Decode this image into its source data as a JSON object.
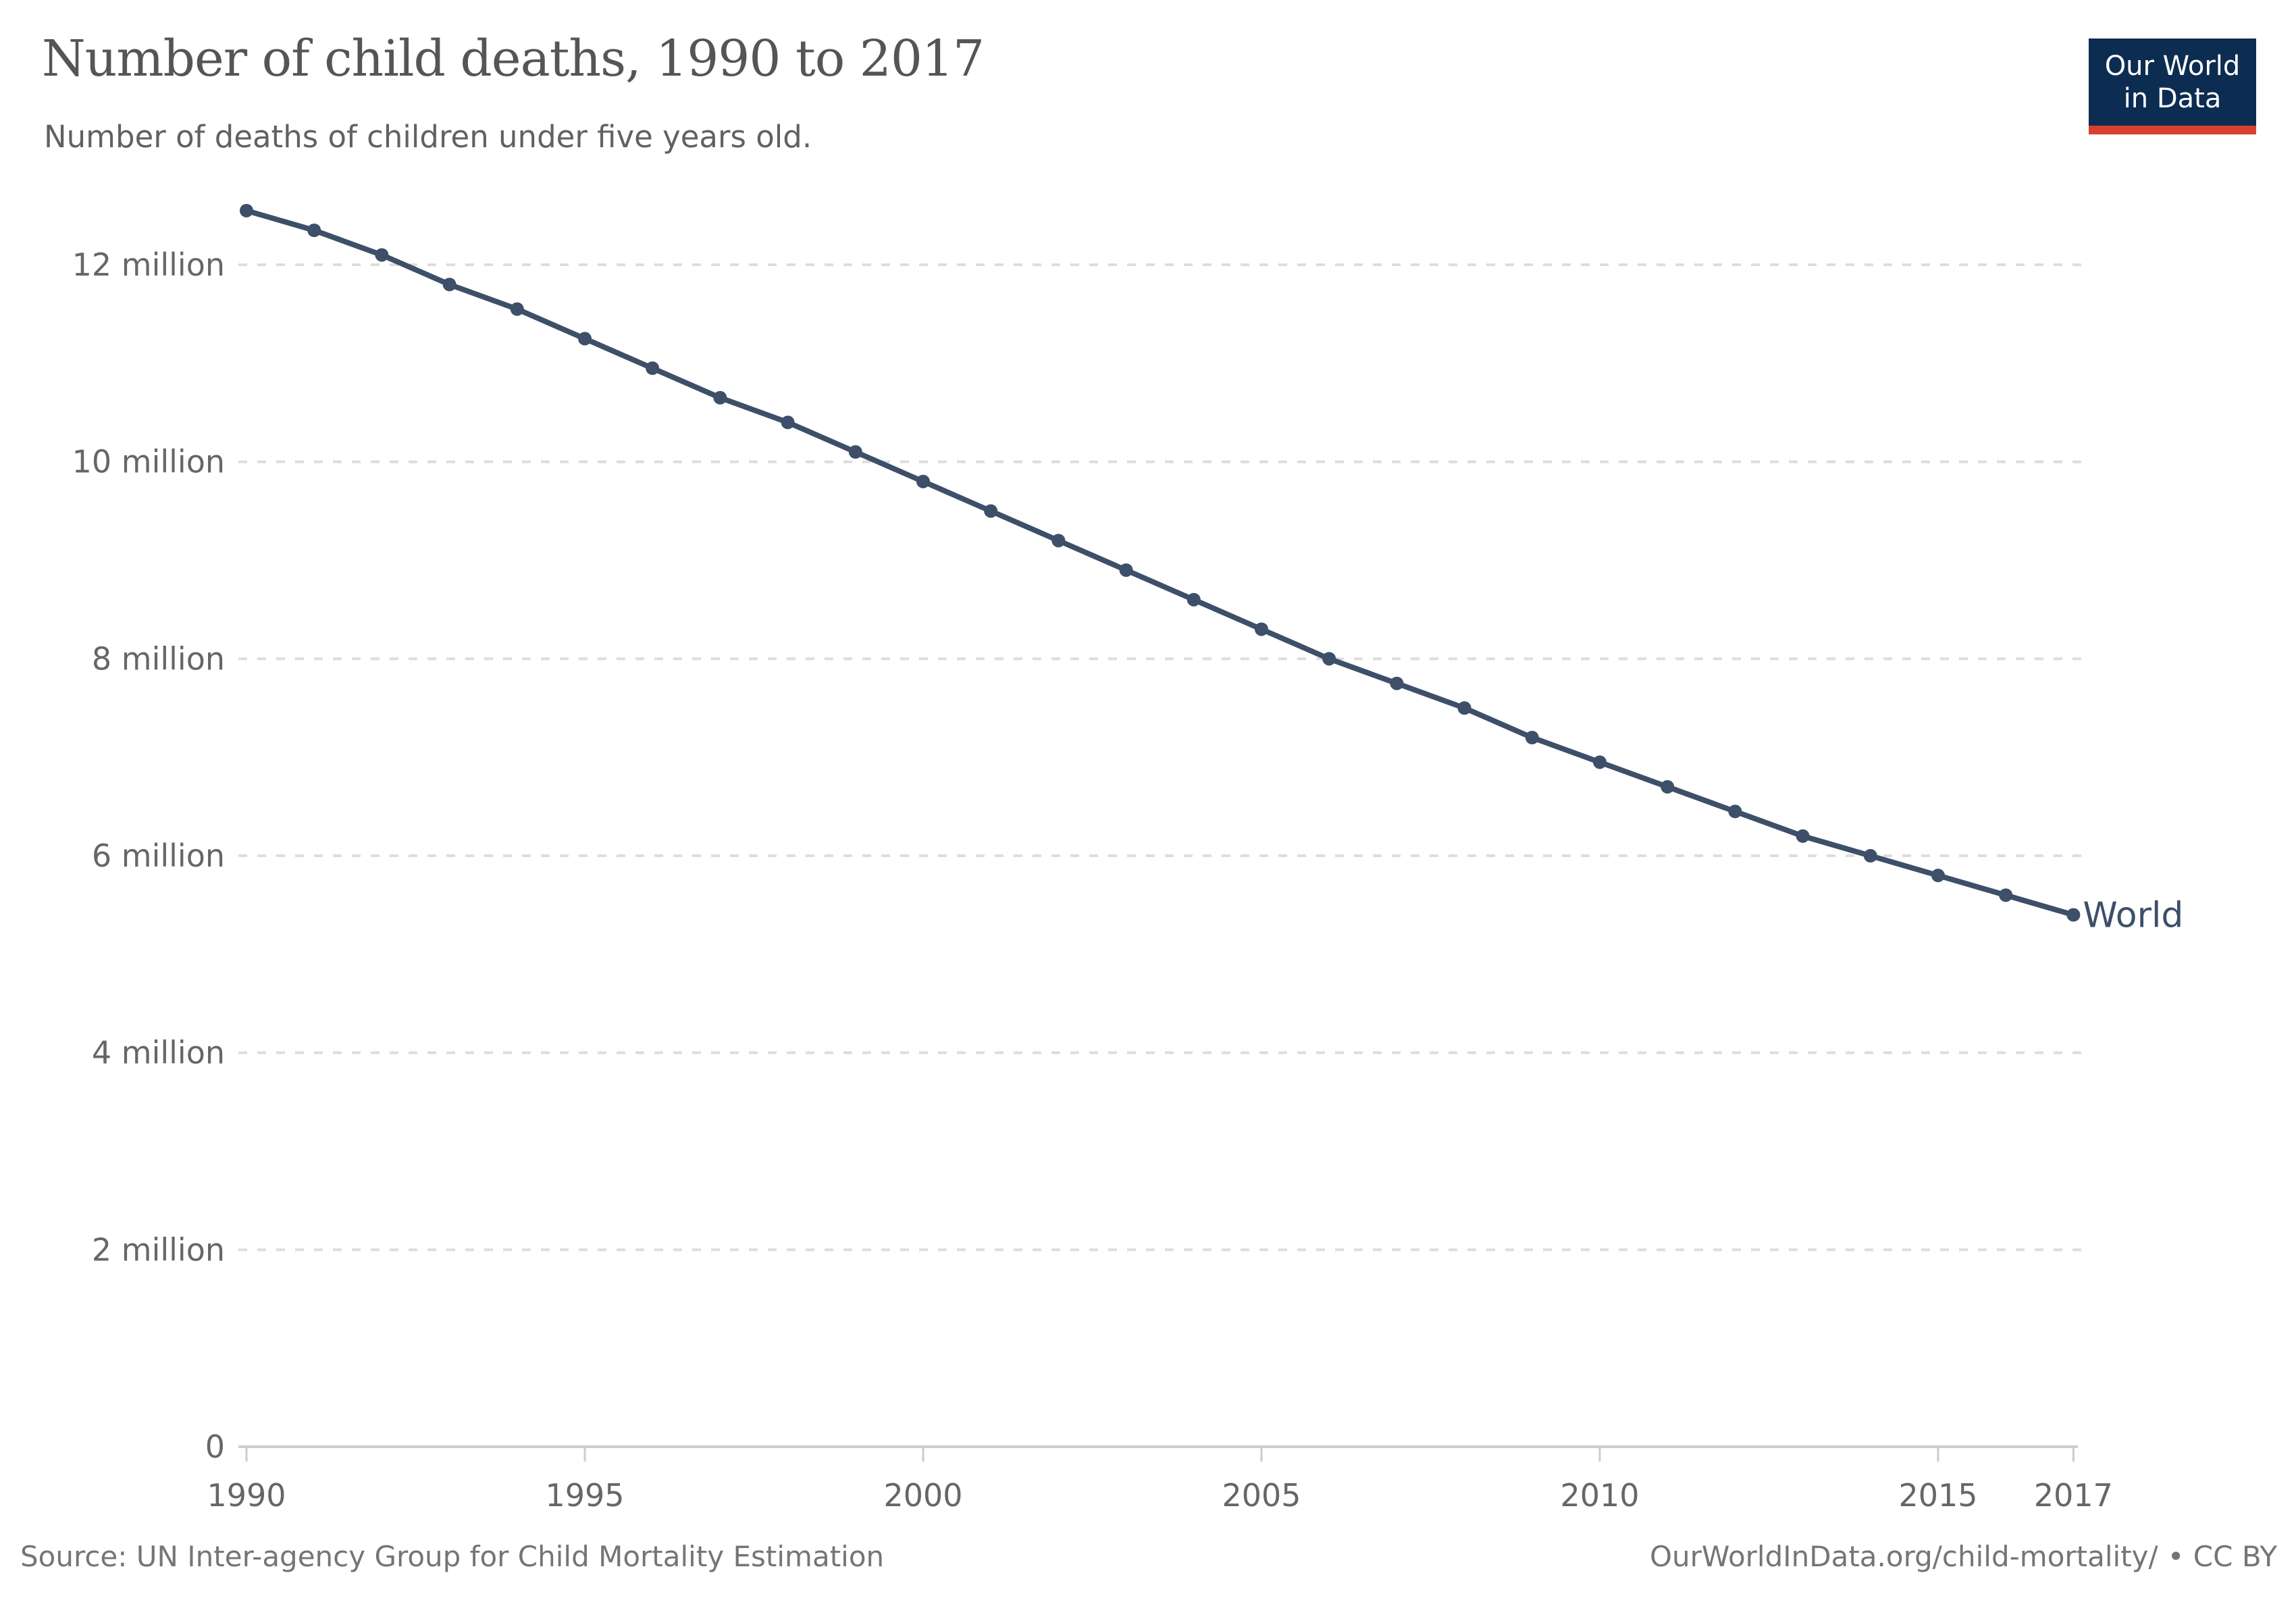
{
  "logo": {
    "line1": "Our World",
    "line2": "in Data",
    "bg_color": "#0d2c51",
    "accent_color": "#d8402f"
  },
  "footer": {
    "source": "Source: UN Inter-agency Group for Child Mortality Estimation",
    "link": "OurWorldInData.org/child-mortality/",
    "credit": "• CC BY"
  },
  "colors": {
    "line": "#3d4f69",
    "grid": "#dddddd",
    "axis": "#cccccc",
    "tick_text": "#666666",
    "title_text": "#555555",
    "footer_text": "#757575"
  },
  "chart_data": {
    "type": "line",
    "title": "Number of child deaths, 1990 to 2017",
    "subtitle": "Number of deaths of children under five years old.",
    "values_unit": "millions",
    "xlabel": "",
    "ylabel": "",
    "xlim": [
      1990,
      2017
    ],
    "ylim": [
      0,
      12.8
    ],
    "grid": true,
    "legend": "end-of-line-label",
    "end_label": "World",
    "x_ticks": [
      1990,
      1995,
      2000,
      2005,
      2010,
      2015,
      2017
    ],
    "y_ticks": [
      {
        "value": 0,
        "label": "0"
      },
      {
        "value": 2,
        "label": "2 million"
      },
      {
        "value": 4,
        "label": "4 million"
      },
      {
        "value": 6,
        "label": "6 million"
      },
      {
        "value": 8,
        "label": "8 million"
      },
      {
        "value": 10,
        "label": "10 million"
      },
      {
        "value": 12,
        "label": "12 million"
      }
    ],
    "series": [
      {
        "name": "World",
        "x": [
          1990,
          1991,
          1992,
          1993,
          1994,
          1995,
          1996,
          1997,
          1998,
          1999,
          2000,
          2001,
          2002,
          2003,
          2004,
          2005,
          2006,
          2007,
          2008,
          2009,
          2010,
          2011,
          2012,
          2013,
          2014,
          2015,
          2016,
          2017
        ],
        "values": [
          12.55,
          12.35,
          12.1,
          11.8,
          11.55,
          11.25,
          10.95,
          10.65,
          10.4,
          10.1,
          9.8,
          9.5,
          9.2,
          8.9,
          8.6,
          8.3,
          8.0,
          7.75,
          7.5,
          7.2,
          6.95,
          6.7,
          6.45,
          6.2,
          6.0,
          5.8,
          5.6,
          5.4
        ]
      }
    ]
  }
}
